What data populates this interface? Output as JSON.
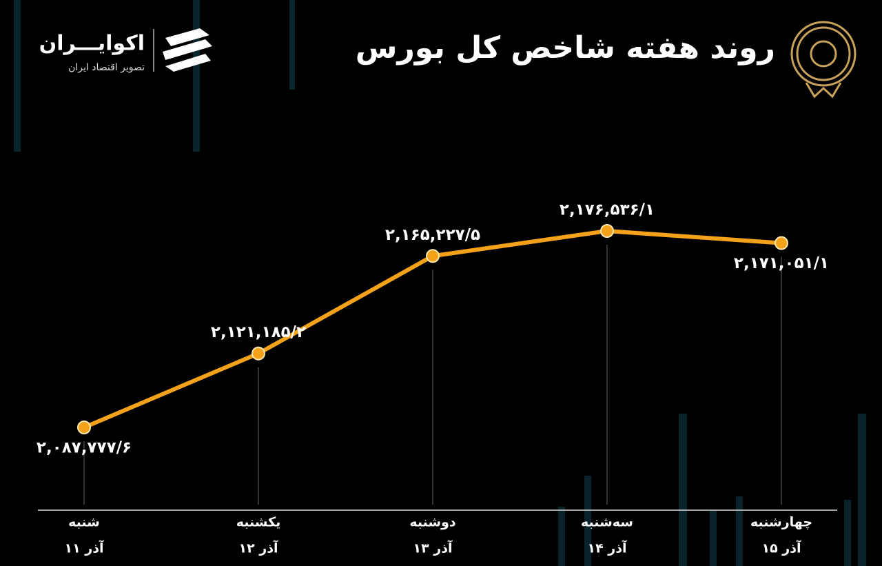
{
  "brand": {
    "name": "اکوایـــران",
    "tagline": "تصویر اقتصاد ایران"
  },
  "chart_data": {
    "type": "line",
    "title": "روند هفته شاخص کل بورس",
    "categories": [
      "شنبه",
      "یکشنبه",
      "دوشنبه",
      "سه‌شنبه",
      "چهارشنبه"
    ],
    "dates": [
      "۱۱ آذر",
      "۱۲ آذر",
      "۱۳ آذر",
      "۱۴ آذر",
      "۱۵ آذر"
    ],
    "values": [
      2087777.6,
      2121185.2,
      2165227.5,
      2176536.1,
      2171051.1
    ],
    "value_labels": [
      "۲,۰۸۷,۷۷۷/۶",
      "۲,۱۲۱,۱۸۵/۲",
      "۲,۱۶۵,۲۲۷/۵",
      "۲,۱۷۶,۵۳۶/۱",
      "۲,۱۷۱,۰۵۱/۱"
    ],
    "color": "#f5a21b"
  }
}
